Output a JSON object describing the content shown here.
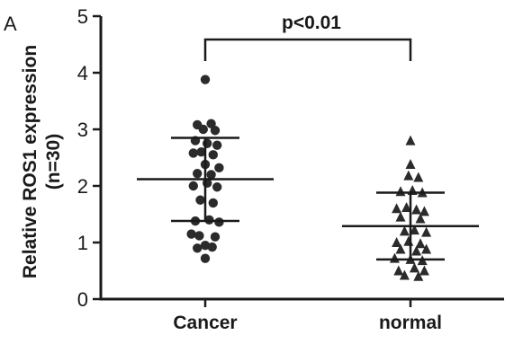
{
  "panel_label": "A",
  "chart_data": {
    "type": "scatter",
    "ylabel_lines": [
      "Relative ROS1 expression",
      "(n=30)"
    ],
    "ylim": [
      0,
      5
    ],
    "yticks": [
      0,
      1,
      2,
      3,
      4,
      5
    ],
    "categories": [
      "Cancer",
      "normal"
    ],
    "annotation": "p<0.01",
    "grid": false,
    "series": [
      {
        "category": "Cancer",
        "marker": "circle",
        "mean": 2.12,
        "sd_upper": 2.85,
        "sd_lower": 1.38,
        "points": [
          [
            0.0,
            3.88
          ],
          [
            -0.08,
            3.08
          ],
          [
            0.06,
            3.1
          ],
          [
            -0.02,
            3.0
          ],
          [
            0.1,
            2.98
          ],
          [
            -0.1,
            2.8
          ],
          [
            0.02,
            2.75
          ],
          [
            0.12,
            2.72
          ],
          [
            -0.04,
            2.6
          ],
          [
            0.08,
            2.55
          ],
          [
            -0.12,
            2.58
          ],
          [
            0.0,
            2.38
          ],
          [
            0.14,
            2.32
          ],
          [
            -0.08,
            2.22
          ],
          [
            0.06,
            2.2
          ],
          [
            -0.12,
            2.0
          ],
          [
            0.02,
            2.05
          ],
          [
            0.12,
            1.98
          ],
          [
            -0.05,
            1.75
          ],
          [
            0.08,
            1.7
          ],
          [
            -0.1,
            1.38
          ],
          [
            0.04,
            1.4
          ],
          [
            0.14,
            1.36
          ],
          [
            -0.06,
            1.12
          ],
          [
            0.1,
            1.1
          ],
          [
            -0.14,
            1.15
          ],
          [
            0.0,
            0.95
          ],
          [
            -0.08,
            0.9
          ],
          [
            0.07,
            0.92
          ],
          [
            0.0,
            0.72
          ]
        ]
      },
      {
        "category": "normal",
        "marker": "triangle",
        "mean": 1.29,
        "sd_upper": 1.88,
        "sd_lower": 0.7,
        "points": [
          [
            0.0,
            2.8
          ],
          [
            0.0,
            2.38
          ],
          [
            -0.02,
            2.18
          ],
          [
            0.08,
            2.15
          ],
          [
            -0.1,
            1.9
          ],
          [
            0.02,
            1.92
          ],
          [
            0.12,
            1.88
          ],
          [
            -0.14,
            1.6
          ],
          [
            -0.04,
            1.62
          ],
          [
            0.06,
            1.58
          ],
          [
            0.14,
            1.55
          ],
          [
            -0.1,
            1.45
          ],
          [
            0.1,
            1.42
          ],
          [
            -0.06,
            1.2
          ],
          [
            0.04,
            1.22
          ],
          [
            0.16,
            1.18
          ],
          [
            -0.14,
            1.0
          ],
          [
            -0.02,
            1.02
          ],
          [
            0.1,
            0.98
          ],
          [
            -0.1,
            0.88
          ],
          [
            0.06,
            0.85
          ],
          [
            0.16,
            0.88
          ],
          [
            -0.16,
            0.72
          ],
          [
            0.0,
            0.7
          ],
          [
            0.12,
            0.68
          ],
          [
            -0.12,
            0.5
          ],
          [
            0.04,
            0.55
          ],
          [
            0.14,
            0.5
          ],
          [
            -0.06,
            0.42
          ],
          [
            0.08,
            0.4
          ]
        ]
      }
    ]
  }
}
